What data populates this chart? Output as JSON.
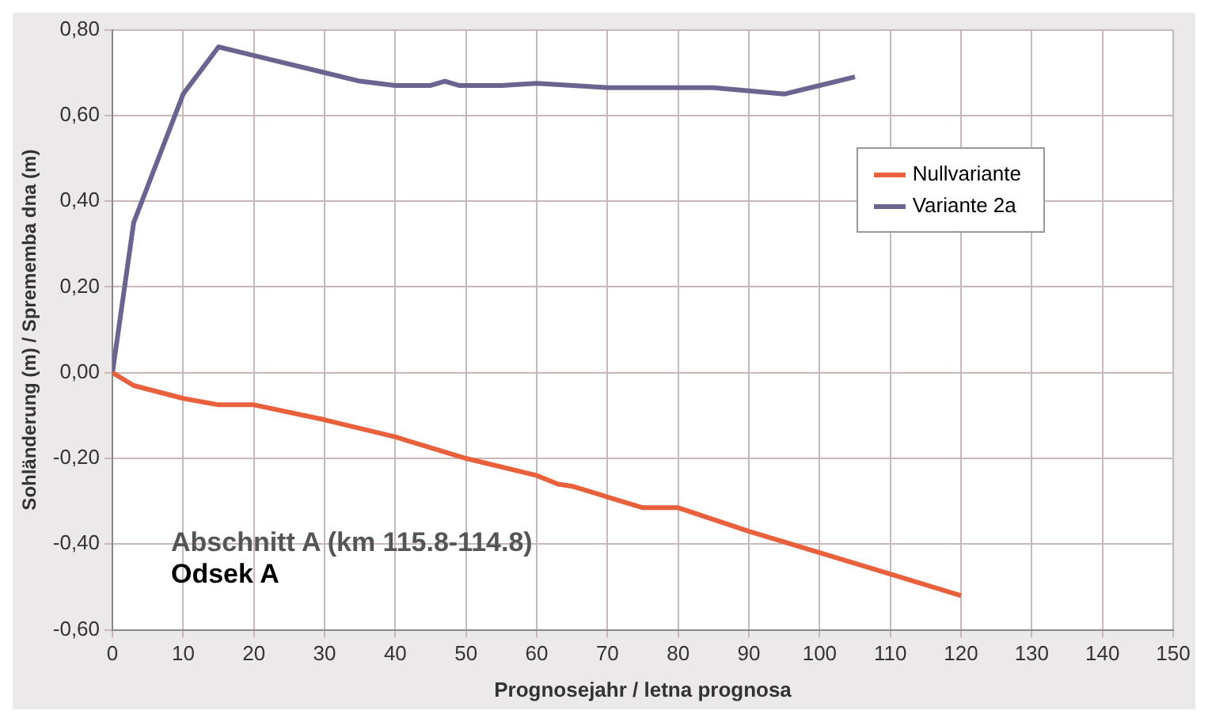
{
  "chart_data": {
    "type": "line",
    "xlabel": "Prognosejahr / letna prognosa",
    "ylabel": "Sohländerung (m) / Sprememba dna (m)",
    "series": [
      {
        "name": "Nullvariante",
        "color": "#e8603c",
        "x": [
          0,
          3,
          10,
          15,
          20,
          30,
          40,
          50,
          60,
          63,
          65,
          70,
          75,
          80,
          90,
          100,
          110,
          120
        ],
        "values": [
          0,
          -0.03,
          -0.06,
          -0.075,
          -0.075,
          -0.11,
          -0.15,
          -0.2,
          -0.24,
          -0.26,
          -0.265,
          -0.29,
          -0.315,
          -0.315,
          -0.37,
          -0.42,
          -0.47,
          -0.52
        ]
      },
      {
        "name": "Variante 2a",
        "color": "#6b6390",
        "x": [
          0,
          3,
          10,
          15,
          20,
          30,
          35,
          40,
          45,
          47,
          49,
          55,
          60,
          70,
          80,
          85,
          95,
          100,
          105
        ],
        "values": [
          0,
          0.35,
          0.65,
          0.76,
          0.74,
          0.7,
          0.68,
          0.67,
          0.67,
          0.68,
          0.67,
          0.67,
          0.675,
          0.665,
          0.665,
          0.665,
          0.65,
          0.67,
          0.69
        ]
      }
    ],
    "xlim": [
      0,
      150
    ],
    "xticks": [
      0,
      10,
      20,
      30,
      40,
      50,
      60,
      70,
      80,
      90,
      100,
      110,
      120,
      130,
      140,
      150
    ],
    "ylim": [
      -0.6,
      0.8
    ],
    "yticks": [
      {
        "value": -0.6,
        "label": "-0,60"
      },
      {
        "value": -0.4,
        "label": "-0,40"
      },
      {
        "value": -0.2,
        "label": "-0,20"
      },
      {
        "value": 0,
        "label": "0,00"
      },
      {
        "value": 0.2,
        "label": "0,20"
      },
      {
        "value": 0.4,
        "label": "0,40"
      },
      {
        "value": 0.6,
        "label": "0,60"
      },
      {
        "value": 0.8,
        "label": "0,80"
      }
    ],
    "annotations": [
      "Abschnitt A (km 115.8-114.8)",
      "Odsek A"
    ],
    "grid": true,
    "legend": "right",
    "marker": "none",
    "line_style": "solid"
  }
}
